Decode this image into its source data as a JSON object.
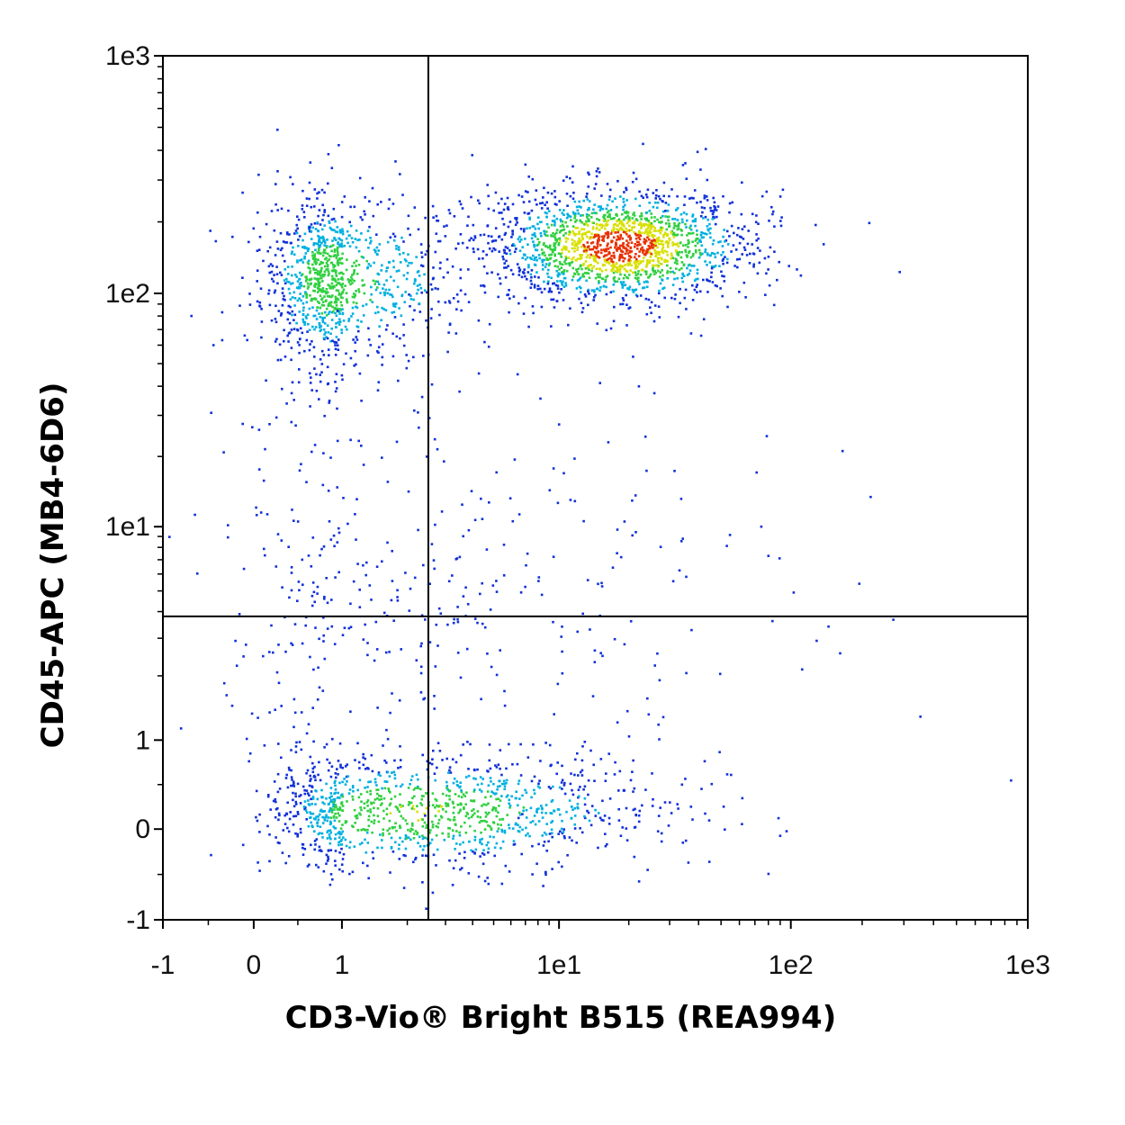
{
  "chart_data": {
    "type": "scatter",
    "subtype": "flow-cytometry-density-dot-plot",
    "xlabel": "CD3-Vio® Bright B515 (REA994)",
    "ylabel": "CD45-APC (MB4-6D6)",
    "x_scale": "biexponential",
    "y_scale": "biexponential",
    "xlim": [
      -1,
      1000
    ],
    "ylim": [
      -1,
      1000
    ],
    "x_ticks": [
      {
        "value": -1,
        "label": "-1"
      },
      {
        "value": 0,
        "label": "0"
      },
      {
        "value": 1,
        "label": "1"
      },
      {
        "value": 10,
        "label": "1e1"
      },
      {
        "value": 100,
        "label": "1e2"
      },
      {
        "value": 1000,
        "label": "1e3"
      }
    ],
    "y_ticks": [
      {
        "value": -1,
        "label": "-1"
      },
      {
        "value": 0,
        "label": "0"
      },
      {
        "value": 1,
        "label": "1"
      },
      {
        "value": 10,
        "label": "1e1"
      },
      {
        "value": 100,
        "label": "1e2"
      },
      {
        "value": 1000,
        "label": "1e3"
      }
    ],
    "quadrant_gates": {
      "x": 2.5,
      "y": 3.8
    },
    "grid": false,
    "legend": "none",
    "color_scale": [
      "#1030d8",
      "#00b0e0",
      "#30d040",
      "#d8e000",
      "#e83000"
    ],
    "populations": [
      {
        "x_center": 0.85,
        "y_center": 115,
        "x_spread": 0.7,
        "y_spread_decades": 0.18,
        "peak_density": 0.55
      },
      {
        "x_center": 18,
        "y_center": 160,
        "x_spread_decades": 0.28,
        "y_spread_decades": 0.12,
        "peak_density": 1.0
      },
      {
        "x_center": 2.2,
        "y_center": 0.2,
        "x_spread": 1.0,
        "y_spread": 0.35,
        "peak_density": 0.6
      },
      {
        "x_center": 2.0,
        "y_center": 5.0,
        "x_spread": 1.5,
        "y_spread_decades": 0.5,
        "peak_density": 0.1
      }
    ]
  }
}
